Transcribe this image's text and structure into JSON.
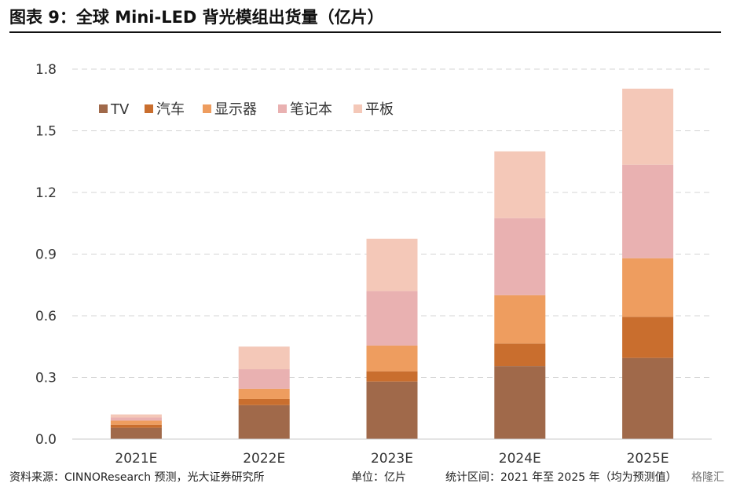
{
  "page": {
    "title": "图表 9：全球 Mini-LED 背光模组出货量（亿片）",
    "footer_source": "资料来源：CINNOResearch 预测，光大证券研究所",
    "footer_unit": "单位：亿片",
    "footer_range": "统计区间：2021 年至 2025 年（均为预测值）",
    "watermark": "格隆汇"
  },
  "chart_data": {
    "type": "bar",
    "stacked": true,
    "title": "",
    "xlabel": "",
    "ylabel": "",
    "ylim": [
      0,
      1.8
    ],
    "yticks": [
      "0.0",
      "0.3",
      "0.6",
      "0.9",
      "1.2",
      "1.5",
      "1.8"
    ],
    "grid": true,
    "legend": "top-left",
    "categories": [
      "2021E",
      "2022E",
      "2023E",
      "2024E",
      "2025E"
    ],
    "series": [
      {
        "name": "TV",
        "color": "#A0694A",
        "values": [
          0.055,
          0.165,
          0.28,
          0.355,
          0.395
        ]
      },
      {
        "name": "汽车",
        "color": "#C96E2E",
        "values": [
          0.015,
          0.03,
          0.05,
          0.11,
          0.2
        ]
      },
      {
        "name": "显示器",
        "color": "#EE9D5F",
        "values": [
          0.02,
          0.05,
          0.125,
          0.235,
          0.285
        ]
      },
      {
        "name": "笔记本",
        "color": "#E9B1B1",
        "values": [
          0.015,
          0.095,
          0.265,
          0.375,
          0.455
        ]
      },
      {
        "name": "平板",
        "color": "#F4C8B8",
        "values": [
          0.015,
          0.11,
          0.255,
          0.325,
          0.37
        ]
      }
    ]
  }
}
